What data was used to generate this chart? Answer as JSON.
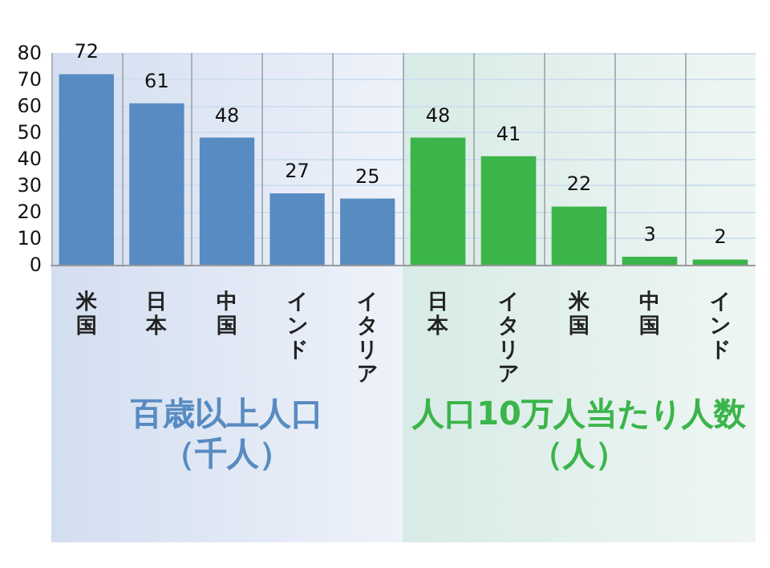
{
  "chart_data": [
    {
      "type": "bar",
      "xlabel": "百歳以上人口（千人）",
      "categories": [
        "米国",
        "日本",
        "中国",
        "インド",
        "イタリア"
      ],
      "values": [
        72,
        61,
        48,
        27,
        25
      ],
      "color": "#588bc1",
      "ylim": [
        0,
        80
      ],
      "yticks": [
        0,
        10,
        20,
        30,
        40,
        50,
        60,
        70,
        80
      ],
      "grid": true,
      "data_labels": true
    },
    {
      "type": "bar",
      "xlabel": "人口10万人当たり人数（人）",
      "categories": [
        "日本",
        "イタリア",
        "米国",
        "中国",
        "インド"
      ],
      "values": [
        48,
        41,
        22,
        3,
        2
      ],
      "color": "#3bb54a",
      "ylim": [
        0,
        80
      ],
      "yticks": [
        0,
        10,
        20,
        30,
        40,
        50,
        60,
        70,
        80
      ],
      "grid": true,
      "data_labels": true,
      "tick_labels": "x"
    }
  ]
}
